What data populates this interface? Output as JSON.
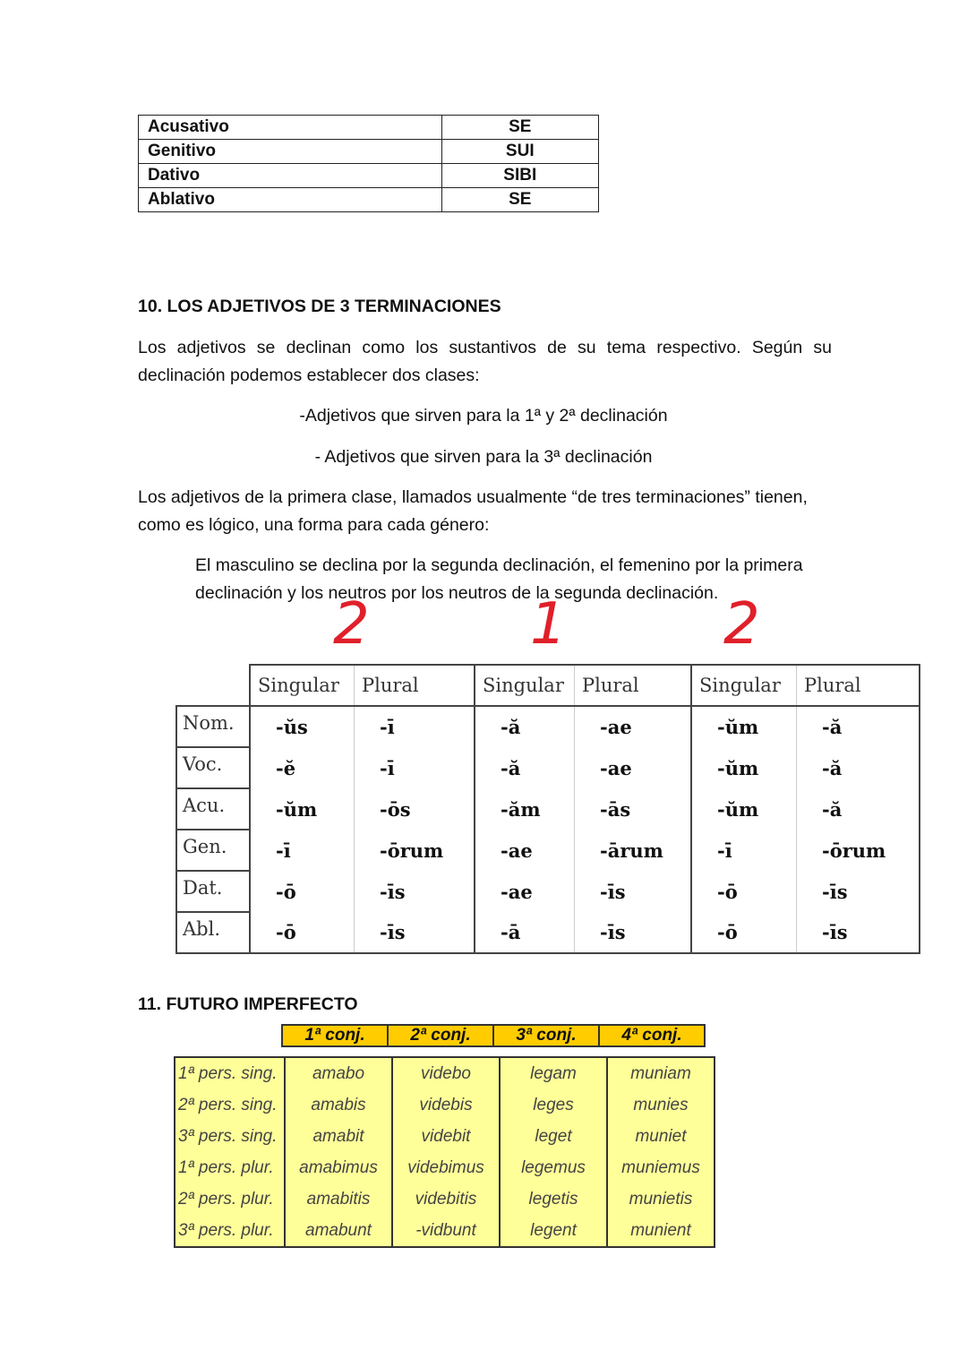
{
  "pronoun_table": [
    [
      "Acusativo",
      "SE"
    ],
    [
      "Genitivo",
      "SUI"
    ],
    [
      "Dativo",
      "SIBI"
    ],
    [
      "Ablativo",
      "SE"
    ]
  ],
  "section10": {
    "heading": "10. LOS ADJETIVOS DE 3 TERMINACIONES",
    "para1": "Los adjetivos se declinan como los sustantivos de su tema respectivo. Según su declinación podemos establecer dos clases:",
    "item1": "-Adjetivos que sirven para la 1ª y 2ª declinación",
    "item2": "- Adjetivos que sirven para la 3ª declinación",
    "para2": "Los adjetivos de la primera clase, llamados usualmente “de tres terminaciones” tienen, como es lógico, una forma para cada género:",
    "para3": "El masculino se declina por la segunda declinación, el femenino por la primera declinación y los neutros por los neutros de la segunda declinación.",
    "handwritten": [
      "2",
      "1",
      "2"
    ],
    "handwriting_color": "#e0202a"
  },
  "declension": {
    "headers": [
      "Singular",
      "Plural",
      "Singular",
      "Plural",
      "Singular",
      "Plural"
    ],
    "rows": [
      {
        "case": "Nom.",
        "endings": [
          "-ŭs",
          "-ī",
          "-ă",
          "-ae",
          "-ŭm",
          "-ă"
        ]
      },
      {
        "case": "Voc.",
        "endings": [
          "-ĕ",
          "-ī",
          "-ă",
          "-ae",
          "-ŭm",
          "-ă"
        ]
      },
      {
        "case": "Acu.",
        "endings": [
          "-ŭm",
          "-ōs",
          "-ăm",
          "-ās",
          "-ŭm",
          "-ă"
        ]
      },
      {
        "case": "Gen.",
        "endings": [
          "-ī",
          "-ōrum",
          "-ae",
          "-ārum",
          "-ī",
          "-ōrum"
        ]
      },
      {
        "case": "Dat.",
        "endings": [
          "-ō",
          "-īs",
          "-ae",
          "-īs",
          "-ō",
          "-īs"
        ]
      },
      {
        "case": "Abl.",
        "endings": [
          "-ō",
          "-īs",
          "-ā",
          "-īs",
          "-ō",
          "-īs"
        ]
      }
    ]
  },
  "section11": {
    "heading": "11. FUTURO IMPERFECTO",
    "headers": [
      "1ª conj.",
      "2ª conj.",
      "3ª conj.",
      "4ª conj."
    ],
    "header_color": "#ffcc00",
    "body_color": "#ffff99",
    "rows": [
      {
        "person": "1ª pers. sing.",
        "forms": [
          "amabo",
          "videbo",
          "legam",
          "muniam"
        ]
      },
      {
        "person": "2ª pers. sing.",
        "forms": [
          "amabis",
          "videbis",
          "leges",
          "munies"
        ]
      },
      {
        "person": "3ª pers. sing.",
        "forms": [
          "amabit",
          "videbit",
          "leget",
          "muniet"
        ]
      },
      {
        "person": "1ª pers. plur.",
        "forms": [
          "amabimus",
          "videbimus",
          "legemus",
          "muniemus"
        ]
      },
      {
        "person": "2ª pers. plur.",
        "forms": [
          "amabitis",
          "videbitis",
          "legetis",
          "munietis"
        ]
      },
      {
        "person": "3ª pers. plur.",
        "forms": [
          "amabunt",
          "-vidbunt",
          "legent",
          "munient"
        ]
      }
    ]
  }
}
